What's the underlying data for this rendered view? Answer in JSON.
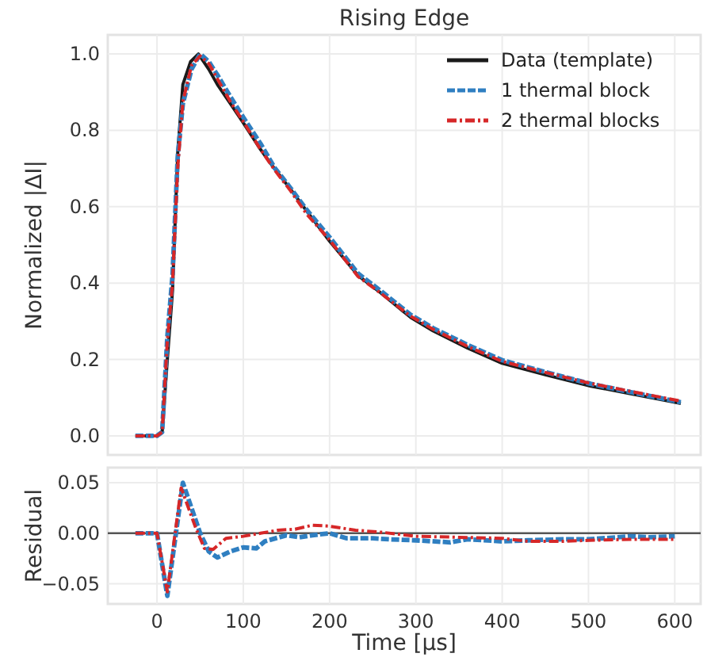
{
  "chart_data": [
    {
      "type": "line",
      "title": "Rising Edge",
      "ylabel": "Normalized |ΔI|",
      "xlim": [
        -57,
        630
      ],
      "ylim": [
        -0.05,
        1.05
      ],
      "xticks": [
        0,
        100,
        200,
        300,
        400,
        500,
        600
      ],
      "yticks": [
        {
          "value": 0,
          "label": "0.0"
        },
        {
          "value": 0.2,
          "label": "0.2"
        },
        {
          "value": 0.4,
          "label": "0.4"
        },
        {
          "value": 0.6,
          "label": "0.6"
        },
        {
          "value": 0.8,
          "label": "0.8"
        },
        {
          "value": 1,
          "label": "1.0"
        }
      ],
      "tick_labels": "y",
      "grid": true,
      "legend": "top right",
      "series": [
        {
          "name": "Data (template)",
          "color": "#1a1a1a",
          "line_style": "solid",
          "x": [
            -25,
            0,
            6,
            12,
            18,
            24,
            30,
            39,
            48,
            60,
            70,
            85,
            100,
            120,
            136,
            155,
            173,
            200,
            233,
            259,
            294,
            320,
            360,
            400,
            450,
            503,
            550,
            607
          ],
          "values": [
            0,
            0,
            0.01,
            0.2,
            0.38,
            0.74,
            0.92,
            0.98,
            1.0,
            0.96,
            0.92,
            0.87,
            0.82,
            0.75,
            0.7,
            0.645,
            0.59,
            0.51,
            0.42,
            0.375,
            0.31,
            0.275,
            0.23,
            0.19,
            0.16,
            0.13,
            0.11,
            0.085
          ]
        },
        {
          "name": "1 thermal block",
          "color": "#2f7fc1",
          "line_style": "dashed",
          "x": [
            -25,
            0,
            6,
            12,
            18,
            24,
            30,
            40,
            50,
            60,
            70,
            85,
            100,
            120,
            136,
            155,
            173,
            200,
            233,
            259,
            294,
            320,
            360,
            400,
            450,
            503,
            550,
            607
          ],
          "values": [
            0,
            0,
            0.01,
            0.26,
            0.42,
            0.73,
            0.87,
            0.96,
            1.0,
            0.98,
            0.945,
            0.888,
            0.834,
            0.765,
            0.703,
            0.648,
            0.593,
            0.52,
            0.425,
            0.38,
            0.317,
            0.282,
            0.238,
            0.198,
            0.167,
            0.136,
            0.114,
            0.088
          ]
        },
        {
          "name": "2 thermal blocks",
          "color": "#d62728",
          "line_style": "dashdot",
          "x": [
            -25,
            0,
            6,
            12,
            18,
            24,
            30,
            40,
            50,
            60,
            70,
            85,
            100,
            120,
            136,
            155,
            173,
            200,
            233,
            259,
            294,
            320,
            360,
            400,
            450,
            503,
            550,
            607
          ],
          "values": [
            0,
            0,
            0.01,
            0.25,
            0.4,
            0.7,
            0.875,
            0.97,
            0.995,
            0.975,
            0.935,
            0.875,
            0.823,
            0.75,
            0.697,
            0.641,
            0.582,
            0.513,
            0.417,
            0.374,
            0.313,
            0.279,
            0.234,
            0.195,
            0.166,
            0.137,
            0.116,
            0.091
          ]
        }
      ]
    },
    {
      "type": "line",
      "xlabel": "Time [µs]",
      "ylabel": "Residual",
      "xlim": [
        -57,
        630
      ],
      "ylim": [
        -0.07,
        0.065
      ],
      "xticks": [
        0,
        100,
        200,
        300,
        400,
        500,
        600
      ],
      "yticks": [
        {
          "value": -0.05,
          "label": "−0.05"
        },
        {
          "value": 0,
          "label": "0.00"
        },
        {
          "value": 0.05,
          "label": "0.05"
        }
      ],
      "grid": true,
      "ref_lines": [
        {
          "axis": "y",
          "value": 0,
          "color": "#555555"
        }
      ],
      "series": [
        {
          "color": "#2f7fc1",
          "line_style": "dashed",
          "x": [
            -25,
            0,
            12,
            30,
            50,
            60,
            70,
            85,
            100,
            115,
            125,
            150,
            165,
            180,
            200,
            220,
            250,
            270,
            300,
            340,
            360,
            400,
            430,
            470,
            500,
            550,
            570,
            600
          ],
          "values": [
            0,
            0,
            -0.062,
            0.05,
            0,
            -0.018,
            -0.024,
            -0.018,
            -0.014,
            -0.015,
            -0.008,
            -0.002,
            -0.004,
            -0.002,
            0,
            -0.005,
            -0.005,
            -0.006,
            -0.007,
            -0.009,
            -0.006,
            -0.008,
            -0.007,
            -0.006,
            -0.006,
            -0.003,
            -0.004,
            -0.003
          ]
        },
        {
          "color": "#d62728",
          "line_style": "dashdot",
          "x": [
            -25,
            0,
            12,
            28,
            45,
            55,
            65,
            80,
            100,
            120,
            140,
            160,
            180,
            200,
            230,
            260,
            280,
            300,
            350,
            400,
            430,
            470,
            500,
            550,
            600
          ],
          "values": [
            0,
            0,
            -0.058,
            0.045,
            0.005,
            -0.015,
            -0.016,
            -0.005,
            -0.003,
            0,
            0.003,
            0.004,
            0.008,
            0.007,
            0.003,
            0.001,
            -0.001,
            -0.003,
            -0.004,
            -0.005,
            -0.008,
            -0.008,
            -0.007,
            -0.006,
            -0.006
          ]
        }
      ]
    }
  ]
}
